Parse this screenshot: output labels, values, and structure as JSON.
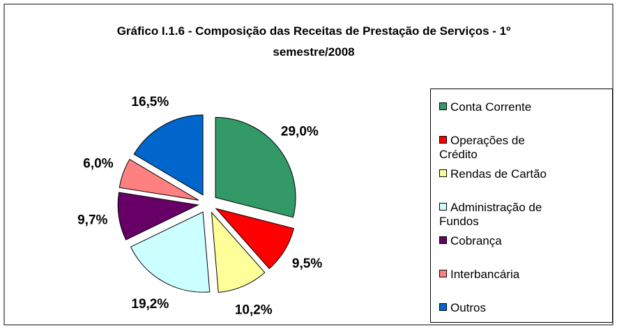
{
  "chart_data": {
    "type": "pie",
    "title": "Gráfico I.1.6 - Composição das Receitas de Prestação de Serviços - 1º semestre/2008",
    "categories": [
      "Conta Corrente",
      "Operações de Crédito",
      "Rendas de Cartão",
      "Administração de Fundos",
      "Cobrança",
      "Interbancária",
      "Outros"
    ],
    "values": [
      29.0,
      9.5,
      10.2,
      19.2,
      9.7,
      6.0,
      16.5
    ],
    "value_labels": [
      "29,0%",
      "9,5%",
      "10,2%",
      "19,2%",
      "9,7%",
      "6,0%",
      "16,5%"
    ],
    "colors": [
      "#339966",
      "#ff0000",
      "#ffff99",
      "#ccffff",
      "#660066",
      "#ff8080",
      "#0066cc"
    ],
    "legend": "right"
  }
}
